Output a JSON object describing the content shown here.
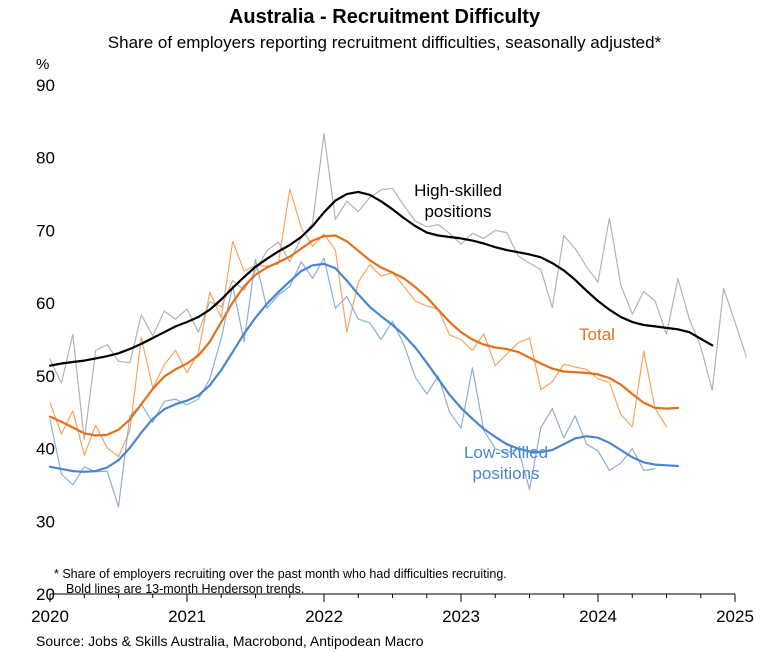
{
  "title": "Australia - Recruitment Difficulty",
  "subtitle": "Share of employers reporting recruitment difficulties, seasonally adjusted*",
  "unit": "%",
  "footnote": [
    "* Share of employers recruiting over the past month who had difficulties recruiting.",
    "Bold lines are 13-month Henderson trends."
  ],
  "source": "Source: Jobs & Skills Australia, Macrobond, Antipodean Macro",
  "chart_data": {
    "type": "line",
    "title": "Australia - Recruitment Difficulty",
    "subtitle": "Share of employers reporting recruitment difficulties, seasonally adjusted*",
    "ylabel": "%",
    "ylim": [
      20,
      90
    ],
    "yticks": [
      20,
      30,
      40,
      50,
      60,
      70,
      80,
      90
    ],
    "xlim": [
      "2020-01",
      "2025-01"
    ],
    "xticks": [
      "2020",
      "2021",
      "2022",
      "2023",
      "2024",
      "2025"
    ],
    "grid": false,
    "legend": "none",
    "annotations": [
      {
        "text": [
          "High-skilled",
          "positions"
        ],
        "series": "High-skilled positions"
      },
      {
        "text": [
          "Total"
        ],
        "series": "Total"
      },
      {
        "text": [
          "Low-skilled",
          "positions"
        ],
        "series": "Low-skilled positions"
      }
    ],
    "series": [
      {
        "name": "High-skilled positions",
        "style": "raw",
        "color": "#b3b3b3",
        "x_start": "2020-01",
        "freq": "monthly",
        "values": [
          52.3,
          49,
          55.7,
          41.2,
          53.5,
          54.3,
          52,
          51.8,
          58.4,
          55.5,
          58.9,
          57.8,
          59.2,
          56,
          60.2,
          59.5,
          63.1,
          61.8,
          64.5,
          67.2,
          68.4,
          65.7,
          69,
          71,
          83.3,
          71.5,
          74,
          72.6,
          74.5,
          75.6,
          75.8,
          73.4,
          71.3,
          70.5,
          70.8,
          69.6,
          68.1,
          69.6,
          68.9,
          70,
          69.7,
          66.5,
          65.5,
          64.6,
          59.4,
          69.3,
          67.5,
          65,
          62.9,
          71.7,
          62.5,
          58.5,
          61.6,
          60.3,
          55.7,
          63.4,
          57.8,
          54,
          48,
          62,
          57.4,
          52.6
        ]
      },
      {
        "name": "Total",
        "style": "raw",
        "color": "#f4a460",
        "x_start": "2020-01",
        "freq": "monthly",
        "values": [
          46.3,
          42,
          45.2,
          39.1,
          43.2,
          40.1,
          38.9,
          42.5,
          55.3,
          48.3,
          51.5,
          53.5,
          50.4,
          53.2,
          61.5,
          58,
          68.5,
          64.4,
          65.2,
          65.1,
          65.4,
          75.7,
          70.4,
          67.8,
          69.5,
          67.3,
          56,
          62.9,
          65.3,
          63.7,
          64.2,
          62.3,
          60.3,
          59.6,
          59.2,
          55.6,
          55,
          53.5,
          55.8,
          51.4,
          53,
          54.5,
          55.2,
          48.1,
          49.2,
          51.6,
          51.2,
          50.9,
          49.6,
          49.1,
          44.7,
          43,
          53.4,
          45.5,
          43
        ]
      },
      {
        "name": "Low-skilled positions",
        "style": "raw",
        "color": "#8caed8",
        "x_start": "2020-01",
        "freq": "monthly",
        "values": [
          44,
          36.5,
          35,
          37.5,
          36.8,
          36.9,
          32,
          44.5,
          46.1,
          43.6,
          46.5,
          46.8,
          46,
          46.8,
          49.6,
          55.2,
          62.4,
          54.7,
          66,
          59.3,
          61.1,
          62.3,
          65.7,
          63.4,
          66.2,
          59.3,
          60.9,
          57.8,
          57.3,
          55,
          57.5,
          54.3,
          49.8,
          47.5,
          50,
          45,
          42.8,
          51.1,
          42.5,
          40,
          39.4,
          40,
          34.4,
          42.9,
          45.5,
          41.5,
          44.5,
          40.6,
          39.7,
          37,
          38,
          40,
          37,
          37.2
        ]
      },
      {
        "name": "High-skilled positions",
        "style": "trend",
        "color": "#000000",
        "x_start": "2020-01",
        "freq": "monthly",
        "values": [
          51.4,
          51.7,
          51.9,
          52.1,
          52.4,
          52.7,
          53.1,
          53.7,
          54.4,
          55.2,
          56,
          56.8,
          57.4,
          58.1,
          59.1,
          60.5,
          62.1,
          63.6,
          65,
          66.1,
          67.1,
          68,
          69.1,
          70.6,
          72.5,
          74.1,
          75,
          75.3,
          74.9,
          74,
          72.9,
          71.7,
          70.6,
          69.7,
          69.3,
          69.1,
          68.9,
          68.6,
          68.2,
          67.7,
          67.3,
          67,
          66.7,
          66.3,
          65.5,
          64.5,
          63.2,
          61.7,
          60.3,
          59.1,
          58.1,
          57.4,
          57,
          56.8,
          56.6,
          56.4,
          56,
          55.1,
          54.2
        ]
      },
      {
        "name": "Total",
        "style": "trend",
        "color": "#e2711d",
        "x_start": "2020-01",
        "freq": "monthly",
        "values": [
          44.4,
          43.7,
          42.9,
          42.1,
          41.8,
          41.9,
          42.6,
          44,
          46.1,
          48.2,
          49.9,
          50.9,
          51.7,
          52.8,
          54.7,
          57.4,
          60.1,
          62.3,
          63.9,
          64.9,
          65.6,
          66.4,
          67.5,
          68.6,
          69.2,
          69.3,
          68.5,
          67.2,
          65.9,
          64.9,
          64.2,
          63.4,
          62.2,
          60.8,
          59.1,
          57.4,
          56,
          55,
          54.3,
          53.9,
          53.7,
          53.3,
          52.5,
          51.7,
          51,
          50.6,
          50.5,
          50.4,
          50.2,
          49.7,
          48.8,
          47.5,
          46.3,
          45.6,
          45.5,
          45.6
        ]
      },
      {
        "name": "Low-skilled positions",
        "style": "trend",
        "color": "#4a86cf",
        "x_start": "2020-01",
        "freq": "monthly",
        "values": [
          37.5,
          37.2,
          36.9,
          36.8,
          36.9,
          37.4,
          38.4,
          40.1,
          42.2,
          44.1,
          45.4,
          46.1,
          46.6,
          47.3,
          48.7,
          50.8,
          53.3,
          55.8,
          58,
          59.9,
          61.5,
          63,
          64.4,
          65.2,
          65.4,
          64.8,
          63.1,
          61.2,
          59.5,
          58.2,
          57,
          55.6,
          53.9,
          51.8,
          49.6,
          47.4,
          45.6,
          44.1,
          42.7,
          41.6,
          40.6,
          40,
          39.6,
          39.5,
          39.8,
          40.6,
          41.4,
          41.7,
          41.5,
          40.8,
          39.8,
          38.8,
          38.1,
          37.8,
          37.7,
          37.6
        ]
      }
    ]
  }
}
